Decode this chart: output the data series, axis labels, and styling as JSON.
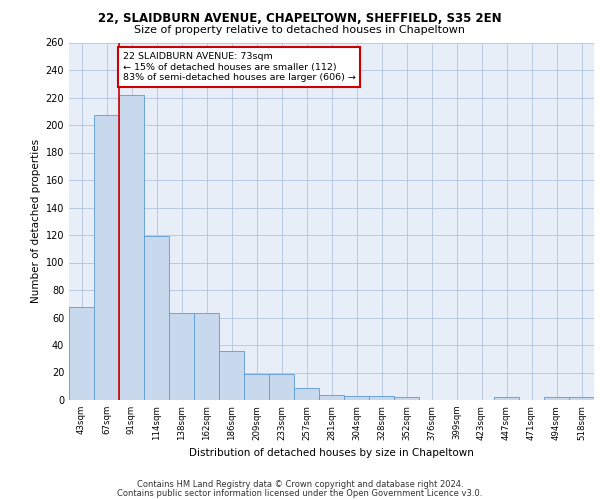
{
  "title1": "22, SLAIDBURN AVENUE, CHAPELTOWN, SHEFFIELD, S35 2EN",
  "title2": "Size of property relative to detached houses in Chapeltown",
  "xlabel": "Distribution of detached houses by size in Chapeltown",
  "ylabel": "Number of detached properties",
  "categories": [
    "43sqm",
    "67sqm",
    "91sqm",
    "114sqm",
    "138sqm",
    "162sqm",
    "186sqm",
    "209sqm",
    "233sqm",
    "257sqm",
    "281sqm",
    "304sqm",
    "328sqm",
    "352sqm",
    "376sqm",
    "399sqm",
    "423sqm",
    "447sqm",
    "471sqm",
    "494sqm",
    "518sqm"
  ],
  "values": [
    68,
    207,
    222,
    119,
    63,
    63,
    36,
    19,
    19,
    9,
    4,
    3,
    3,
    2,
    0,
    0,
    0,
    2,
    0,
    2,
    2
  ],
  "bar_color": "#c9d9ed",
  "bar_edge_color": "#5b9bd5",
  "bar_edge_width": 0.6,
  "redline_x": 1.5,
  "annotation_text": "22 SLAIDBURN AVENUE: 73sqm\n← 15% of detached houses are smaller (112)\n83% of semi-detached houses are larger (606) →",
  "annotation_box_color": "#ffffff",
  "annotation_box_edge": "#cc0000",
  "redline_color": "#cc0000",
  "background_color": "#e8eef7",
  "ylim": [
    0,
    260
  ],
  "yticks": [
    0,
    20,
    40,
    60,
    80,
    100,
    120,
    140,
    160,
    180,
    200,
    220,
    240,
    260
  ],
  "footer1": "Contains HM Land Registry data © Crown copyright and database right 2024.",
  "footer2": "Contains public sector information licensed under the Open Government Licence v3.0."
}
